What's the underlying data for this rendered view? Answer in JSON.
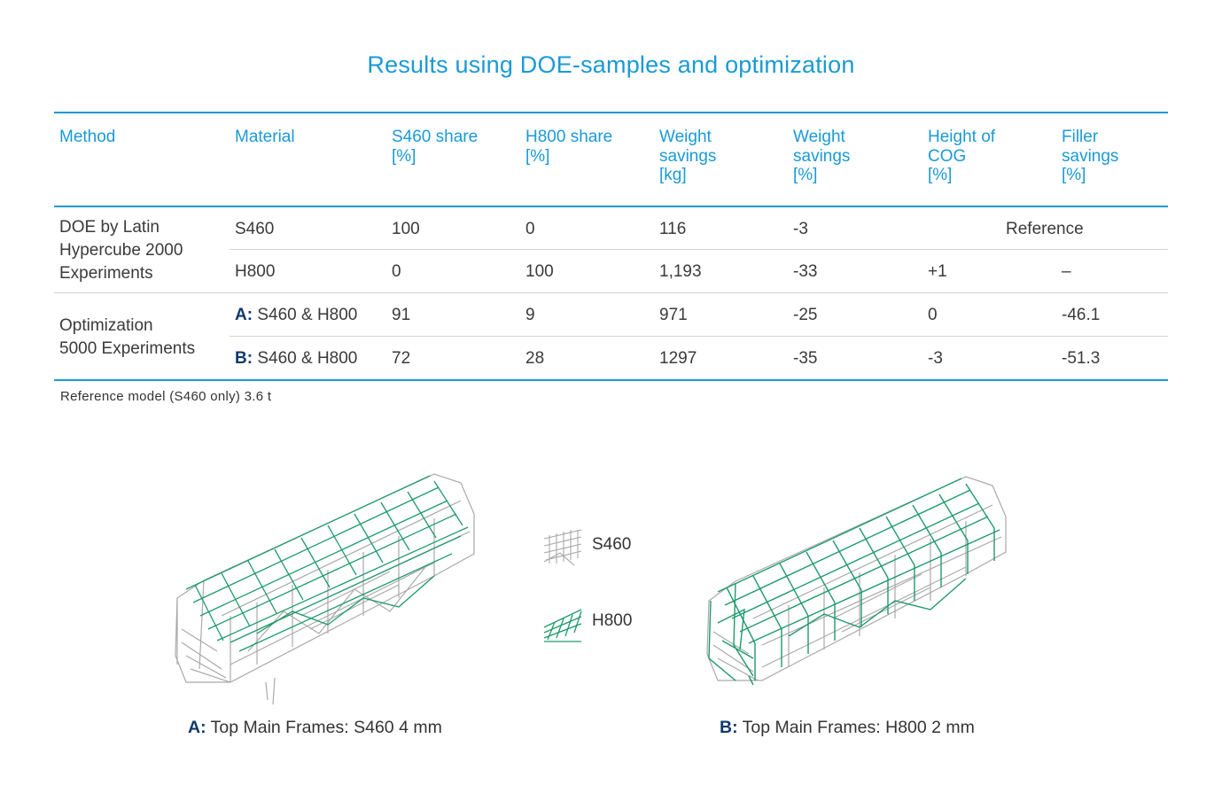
{
  "title": "Results using DOE-samples and optimization",
  "table": {
    "headers": [
      {
        "lines": [
          "Method"
        ],
        "unit": ""
      },
      {
        "lines": [
          "Material"
        ],
        "unit": ""
      },
      {
        "lines": [
          "S460 share"
        ],
        "unit": "[%]"
      },
      {
        "lines": [
          "H800 share"
        ],
        "unit": "[%]"
      },
      {
        "lines": [
          "Weight",
          "savings"
        ],
        "unit": "[kg]"
      },
      {
        "lines": [
          "Weight",
          "savings"
        ],
        "unit": "[%]"
      },
      {
        "lines": [
          "Height of",
          "COG"
        ],
        "unit": "[%]"
      },
      {
        "lines": [
          "Filler",
          "savings"
        ],
        "unit": "[%]"
      }
    ],
    "groups": [
      {
        "method": [
          "DOE by Latin",
          "Hypercube 2000",
          "Experiments"
        ]
      },
      {
        "method": [
          "Optimization",
          "5000 Experiments"
        ]
      }
    ],
    "rows": [
      {
        "prefix": "",
        "material": "S460",
        "s460": "100",
        "h800": "0",
        "wkg": "116",
        "wpct": "-3",
        "cog": "",
        "filler": "",
        "reference": "Reference"
      },
      {
        "prefix": "",
        "material": "H800",
        "s460": "0",
        "h800": "100",
        "wkg": "1,193",
        "wpct": "-33",
        "cog": "+1",
        "filler": "–",
        "reference": ""
      },
      {
        "prefix": "A:",
        "material": " S460 & H800",
        "s460": "91",
        "h800": "9",
        "wkg": "971",
        "wpct": "-25",
        "cog": "0",
        "filler": "-46.1",
        "reference": ""
      },
      {
        "prefix": "B:",
        "material": " S460 & H800",
        "s460": "72",
        "h800": "28",
        "wkg": "1297",
        "wpct": "-35",
        "cog": "-3",
        "filler": "-51.3",
        "reference": ""
      }
    ]
  },
  "note": "Reference model (S460 only) 3.6 t",
  "legend": [
    {
      "label": "S460",
      "color": "#a9a9a9"
    },
    {
      "label": "H800",
      "color": "#1f9a6c"
    }
  ],
  "captions": [
    {
      "prefix": "A:",
      "text": " Top Main Frames: S460  4 mm"
    },
    {
      "prefix": "B:",
      "text": " Top Main Frames: H800  2 mm"
    }
  ],
  "colors": {
    "accent": "#1a9ad6",
    "dark": "#0f3a6b",
    "s460": "#a9a9a9",
    "h800": "#1f9a6c"
  }
}
